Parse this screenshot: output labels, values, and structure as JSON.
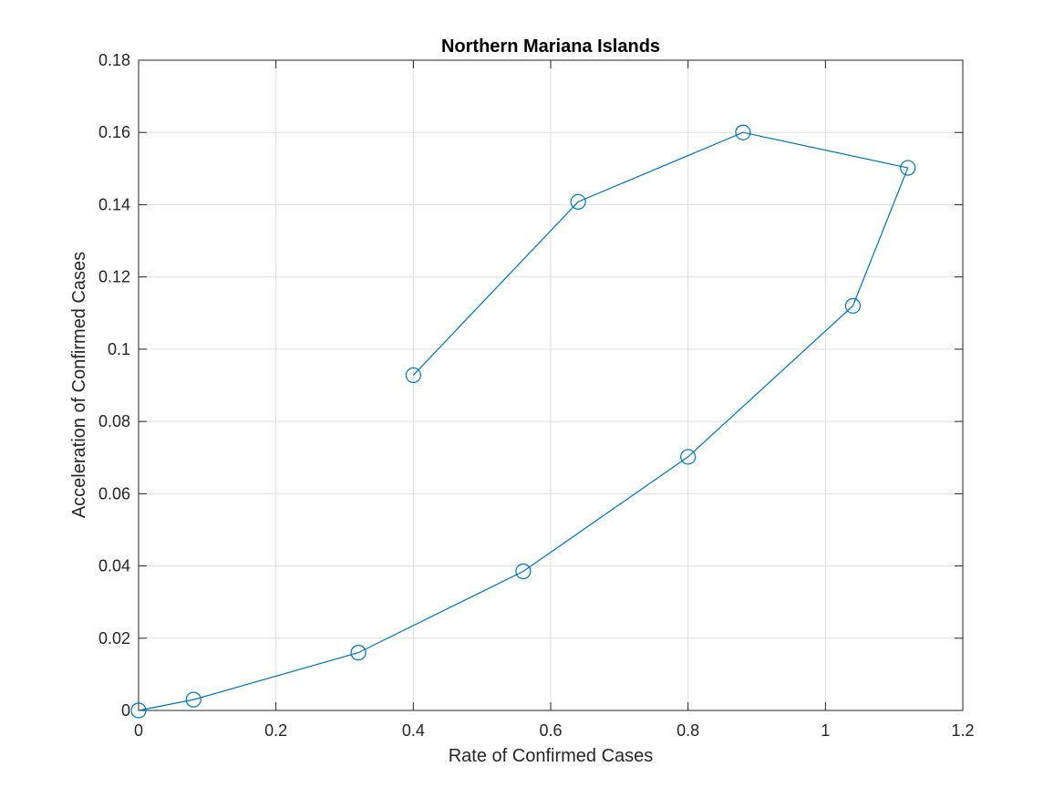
{
  "chart_data": {
    "type": "line",
    "title": "Northern Mariana Islands",
    "xlabel": "Rate of Confirmed Cases",
    "ylabel": "Acceleration of Confirmed Cases",
    "xlim": [
      0,
      1.2
    ],
    "ylim": [
      0,
      0.18
    ],
    "xticks": [
      "0",
      "0.2",
      "0.4",
      "0.6",
      "0.8",
      "1",
      "1.2"
    ],
    "yticks": [
      "0",
      "0.02",
      "0.04",
      "0.06",
      "0.08",
      "0.1",
      "0.12",
      "0.14",
      "0.16",
      "0.18"
    ],
    "grid": true,
    "marker": "circle",
    "series": [
      {
        "x": [
          0,
          0.08,
          0.32,
          0.56,
          0.8,
          1.04,
          1.12,
          0.88,
          0.64,
          0.4
        ],
        "y": [
          0,
          0.003,
          0.016,
          0.0385,
          0.0702,
          0.112,
          0.1502,
          0.16,
          0.1408,
          0.0928
        ],
        "color": "#0072BD"
      }
    ]
  }
}
